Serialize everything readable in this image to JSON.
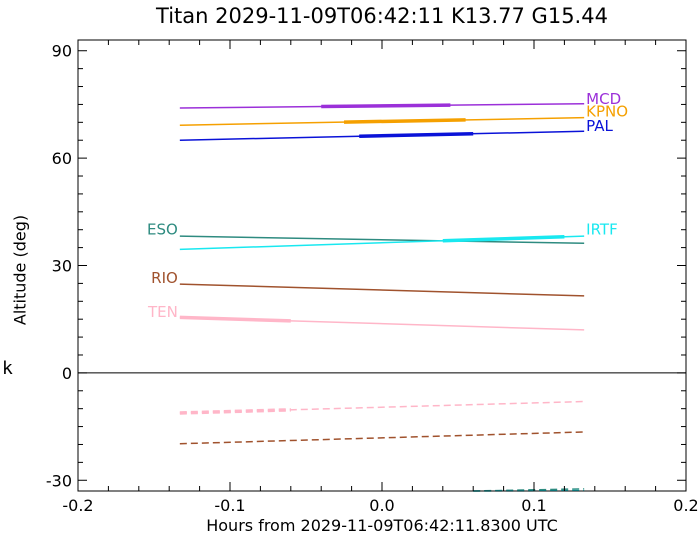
{
  "chart_data": {
    "type": "line",
    "title": "Titan 2029-11-09T06:42:11   K13.77   G15.44",
    "xlabel": "Hours from 2029-11-09T06:42:11.8300 UTC",
    "ylabel": "Altitude (deg)",
    "side_label": "k",
    "xlim": [
      -0.2,
      0.2
    ],
    "ylim": [
      -33,
      93
    ],
    "xticks": [
      -0.2,
      -0.1,
      0.0,
      0.1,
      0.2
    ],
    "xtick_labels": [
      "-0.2",
      "-0.1",
      "0.0",
      "0.1",
      "0.2"
    ],
    "yticks": [
      -30,
      0,
      30,
      60,
      90
    ],
    "ytick_labels": [
      "-30",
      "0",
      "30",
      "60",
      "90"
    ],
    "zero_line": true,
    "grid": false,
    "series": [
      {
        "name": "MCD",
        "color": "#9b30d9",
        "x": [
          -0.133,
          0.133
        ],
        "y": [
          74.0,
          75.2
        ],
        "highlight": [
          -0.04,
          0.045
        ],
        "label_side": "right",
        "label_y": 76.5
      },
      {
        "name": "KPNO",
        "color": "#f5a000",
        "x": [
          -0.133,
          0.133
        ],
        "y": [
          69.2,
          71.3
        ],
        "highlight": [
          -0.025,
          0.055
        ],
        "label_side": "right",
        "label_y": 73.0
      },
      {
        "name": "PAL",
        "color": "#0a12d8",
        "x": [
          -0.133,
          0.133
        ],
        "y": [
          65.0,
          67.5
        ],
        "highlight": [
          -0.015,
          0.06
        ],
        "label_side": "right",
        "label_y": 69.0
      },
      {
        "name": "ESO",
        "color": "#2e8b80",
        "x": [
          -0.133,
          0.133
        ],
        "y": [
          38.2,
          36.2
        ],
        "label_side": "left",
        "label_y": 40.0
      },
      {
        "name": "IRTF",
        "color": "#19e8f0",
        "x": [
          -0.133,
          0.133
        ],
        "y": [
          34.5,
          38.2
        ],
        "highlight": [
          0.04,
          0.12
        ],
        "label_side": "right",
        "label_y": 40.0
      },
      {
        "name": "RIO",
        "color": "#a0522d",
        "x": [
          -0.133,
          0.133
        ],
        "y": [
          24.8,
          21.5
        ],
        "label_side": "left",
        "label_y": 26.5
      },
      {
        "name": "TEN",
        "color": "#ffb6c8",
        "x": [
          -0.133,
          0.133
        ],
        "y": [
          15.5,
          12.0
        ],
        "highlight": [
          -0.133,
          -0.06
        ],
        "label_side": "left",
        "label_y": 17.0
      },
      {
        "color": "#ffb6c8",
        "dashed": true,
        "x": [
          -0.133,
          0.133
        ],
        "y": [
          -11.2,
          -8.0
        ],
        "highlight": [
          -0.133,
          -0.06
        ]
      },
      {
        "color": "#a0522d",
        "dashed": true,
        "x": [
          -0.133,
          0.133
        ],
        "y": [
          -19.8,
          -16.5
        ]
      },
      {
        "color": "#2e8b80",
        "dashed": true,
        "x": [
          0.06,
          0.133
        ],
        "y": [
          -33.0,
          -32.4
        ]
      },
      {
        "color": "#19e8f0",
        "dashed": true,
        "x": [
          0.06,
          0.133
        ],
        "y": [
          -33.0,
          -32.9
        ]
      }
    ]
  }
}
